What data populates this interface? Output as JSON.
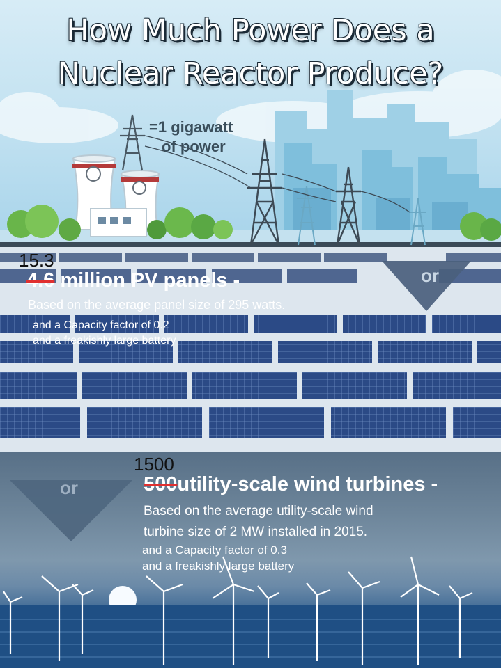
{
  "header": {
    "title_line1": "How Much Power Does a",
    "title_line2": "Nuclear Reactor Produce?"
  },
  "legend": {
    "line1": "=1 gigawatt",
    "line2": "of power"
  },
  "solar": {
    "new_count": "15.3",
    "old_count": "4.6",
    "label": "million PV panels -",
    "note_line1": "Based on the average panel size of 295 watts.",
    "note_line2": "and a Capacity factor of 0.2",
    "note_line3": "and a freakishly large battery"
  },
  "or_label": "or",
  "wind": {
    "new_count": "1500",
    "old_count": "500",
    "label": "utility-scale wind turbines -",
    "note_line1": "Based on the average utility-scale wind",
    "note_line2": "turbine size of 2 MW installed in 2015.",
    "note_line3": "and a Capacity factor of 0.3",
    "note_line4": "and a freakishly large battery"
  }
}
